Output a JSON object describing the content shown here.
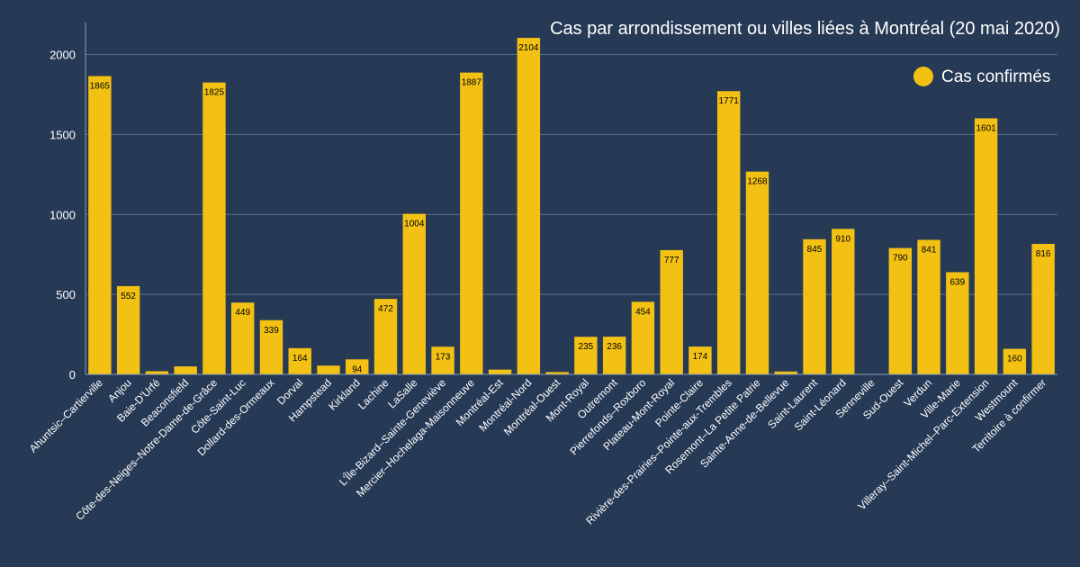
{
  "chart_data": {
    "type": "bar",
    "title": "Cas par arrondissement ou villes liées à Montréal (20 mai 2020)",
    "xlabel": "",
    "ylabel": "",
    "ylim": [
      0,
      2200
    ],
    "yticks": [
      0,
      500,
      1000,
      1500,
      2000
    ],
    "grid": true,
    "legend_position": "top-right",
    "colors": {
      "background": "#263955",
      "bar": "#f2c114",
      "text": "#ffffff",
      "grid": "#5b6f8a"
    },
    "categories": [
      "Ahuntsic–Cartierville",
      "Anjou",
      "Baie-D'Urfé",
      "Beaconsfield",
      "Côte-des-Neiges–Notre-Dame-de-Grâce",
      "Côte-Saint-Luc",
      "Dollard-des-Ormeaux",
      "Dorval",
      "Hampstead",
      "Kirkland",
      "Lachine",
      "LaSalle",
      "L'Île-Bizard–Sainte-Geneviève",
      "Mercier–Hochelaga-Maisonneuve",
      "Montréal-Est",
      "Montréal-Nord",
      "Montréal-Ouest",
      "Mont-Royal",
      "Outremont",
      "Pierrefonds–Roxboro",
      "Plateau-Mont-Royal",
      "Pointe-Claire",
      "Rivière-des-Prairies–Pointe-aux-Trembles",
      "Rosemont–La Petite Patrie",
      "Sainte-Anne-de-Bellevue",
      "Saint-Laurent",
      "Saint-Léonard",
      "Senneville",
      "Sud-Ouest",
      "Verdun",
      "Ville-Marie",
      "Villeray–Saint-Michel–Parc-Extension",
      "Westmount",
      "Territoire à confirmer"
    ],
    "series": [
      {
        "name": "Cas confirmés",
        "values": [
          1865,
          552,
          20,
          50,
          1825,
          449,
          339,
          164,
          55,
          94,
          472,
          1004,
          173,
          1887,
          30,
          2104,
          15,
          235,
          236,
          454,
          777,
          174,
          1771,
          1268,
          18,
          845,
          910,
          3,
          790,
          841,
          639,
          1601,
          160,
          816
        ],
        "labels": [
          "1865",
          "552",
          "",
          "",
          "1825",
          "449",
          "339",
          "164",
          "",
          "94",
          "472",
          "1004",
          "173",
          "1887",
          "",
          "2104",
          "",
          "235",
          "236",
          "454",
          "777",
          "174",
          "1771",
          "1268",
          "",
          "845",
          "910",
          "",
          "790",
          "841",
          "639",
          "1601",
          "160",
          "816"
        ]
      }
    ]
  }
}
